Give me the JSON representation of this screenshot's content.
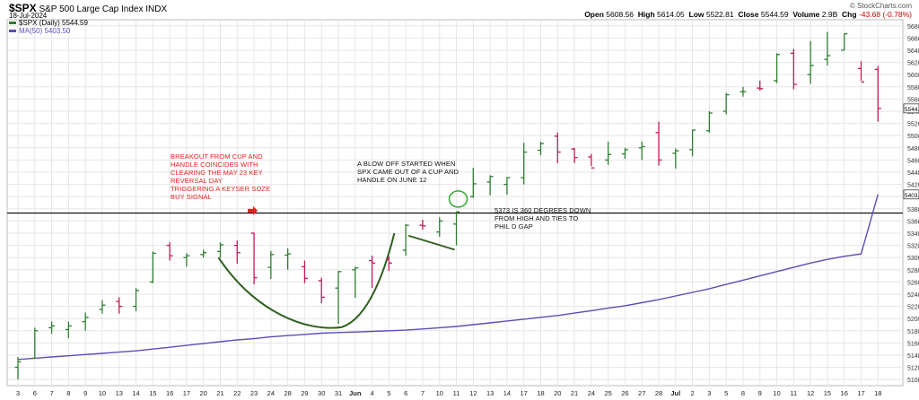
{
  "header": {
    "symbol": "$SPX",
    "name": "S&P 500 Large Cap Index",
    "exchange": "INDX",
    "date": "18-Jul-2024",
    "brand": "© StockCharts.com",
    "ohlc": {
      "open_label": "Open",
      "open": "5608.56",
      "high_label": "High",
      "high": "5614.05",
      "low_label": "Low",
      "low": "5522.81",
      "close_label": "Close",
      "close": "5544.59",
      "volume_label": "Volume",
      "volume": "2.9B",
      "chg_label": "Chg",
      "chg": "-43.68 (-0.78%)"
    },
    "legend_price": "$SPX (Daily) 5544.59",
    "legend_ma": "MA(50) 5403.50"
  },
  "colors": {
    "up": "#2e7d32",
    "down": "#c2185b",
    "ma": "#5a4fb5",
    "hline": "#000000",
    "curve": "#2f5f1e",
    "circle": "#2eaa2e",
    "arrow": "#e8201b",
    "grid": "#e6e6e6"
  },
  "notes": {
    "breakout": "BREAKOUT FROM CUP AND\nHANDLE COINCIDES WITH\nCLEARING THE MAY 23 KEY\nREVERSAL DAY\nTRIGGERING A KEYSER SOZE\nBUY SIGNAL",
    "blowoff": "A BLOW OFF STARTED WHEN\nSPX CAME OUT OF A CUP AND\nHANDLE ON JUNE 12",
    "level5373": "5373 IS 360 DEGREES DOWN\nFROM HIGH AND TIES TO\nPHIL D GAP"
  },
  "chart_data": {
    "type": "ohlc",
    "ylim": [
      5090,
      5690
    ],
    "yticks": [
      5100,
      5120,
      5140,
      5160,
      5180,
      5200,
      5220,
      5240,
      5260,
      5280,
      5300,
      5320,
      5340,
      5360,
      5380,
      5400,
      5420,
      5440,
      5460,
      5480,
      5500,
      5520,
      5540,
      5560,
      5580,
      5600,
      5620,
      5640,
      5660,
      5680
    ],
    "x_labels": [
      "3",
      "6",
      "7",
      "8",
      "9",
      "10",
      "13",
      "14",
      "15",
      "16",
      "17",
      "20",
      "21",
      "22",
      "23",
      "24",
      "28",
      "29",
      "30",
      "31",
      "Jun",
      "4",
      "5",
      "6",
      "7",
      "10",
      "11",
      "12",
      "13",
      "14",
      "17",
      "18",
      "20",
      "21",
      "24",
      "25",
      "26",
      "27",
      "28",
      "Jul",
      "2",
      "3",
      "5",
      "8",
      "9",
      "10",
      "11",
      "12",
      "15",
      "16",
      "17",
      "18"
    ],
    "bold_x_labels": [
      "Jun",
      "Jul"
    ],
    "bars": [
      {
        "o": 5120,
        "h": 5137,
        "l": 5100,
        "c": 5129
      },
      {
        "o": 5135,
        "h": 5185,
        "l": 5135,
        "c": 5180
      },
      {
        "o": 5185,
        "h": 5195,
        "l": 5175,
        "c": 5188
      },
      {
        "o": 5182,
        "h": 5195,
        "l": 5168,
        "c": 5188
      },
      {
        "o": 5195,
        "h": 5210,
        "l": 5180,
        "c": 5202
      },
      {
        "o": 5215,
        "h": 5230,
        "l": 5208,
        "c": 5222
      },
      {
        "o": 5228,
        "h": 5235,
        "l": 5208,
        "c": 5220
      },
      {
        "o": 5220,
        "h": 5250,
        "l": 5212,
        "c": 5246
      },
      {
        "o": 5260,
        "h": 5310,
        "l": 5258,
        "c": 5307
      },
      {
        "o": 5320,
        "h": 5325,
        "l": 5295,
        "c": 5303
      },
      {
        "o": 5300,
        "h": 5307,
        "l": 5285,
        "c": 5303
      },
      {
        "o": 5305,
        "h": 5313,
        "l": 5300,
        "c": 5308
      },
      {
        "o": 5310,
        "h": 5325,
        "l": 5300,
        "c": 5321
      },
      {
        "o": 5320,
        "h": 5328,
        "l": 5290,
        "c": 5308
      },
      {
        "o": 5340,
        "h": 5341,
        "l": 5256,
        "c": 5267
      },
      {
        "o": 5284,
        "h": 5311,
        "l": 5265,
        "c": 5305
      },
      {
        "o": 5304,
        "h": 5315,
        "l": 5280,
        "c": 5306
      },
      {
        "o": 5285,
        "h": 5295,
        "l": 5258,
        "c": 5266
      },
      {
        "o": 5262,
        "h": 5267,
        "l": 5225,
        "c": 5235
      },
      {
        "o": 5250,
        "h": 5278,
        "l": 5191,
        "c": 5277
      },
      {
        "o": 5280,
        "h": 5285,
        "l": 5234,
        "c": 5283
      },
      {
        "o": 5295,
        "h": 5303,
        "l": 5250,
        "c": 5291
      },
      {
        "o": 5297,
        "h": 5302,
        "l": 5278,
        "c": 5291
      },
      {
        "o": 5312,
        "h": 5355,
        "l": 5303,
        "c": 5353
      },
      {
        "o": 5353,
        "h": 5362,
        "l": 5346,
        "c": 5352
      },
      {
        "o": 5342,
        "h": 5366,
        "l": 5334,
        "c": 5360
      },
      {
        "o": 5355,
        "h": 5375,
        "l": 5320,
        "c": 5375
      },
      {
        "o": 5400,
        "h": 5447,
        "l": 5398,
        "c": 5421
      },
      {
        "o": 5424,
        "h": 5435,
        "l": 5402,
        "c": 5433
      },
      {
        "o": 5420,
        "h": 5432,
        "l": 5403,
        "c": 5431
      },
      {
        "o": 5431,
        "h": 5488,
        "l": 5420,
        "c": 5473
      },
      {
        "o": 5476,
        "h": 5490,
        "l": 5468,
        "c": 5487
      },
      {
        "o": 5499,
        "h": 5505,
        "l": 5455,
        "c": 5473
      },
      {
        "o": 5478,
        "h": 5480,
        "l": 5455,
        "c": 5464
      },
      {
        "o": 5465,
        "h": 5470,
        "l": 5450,
        "c": 5447
      },
      {
        "o": 5460,
        "h": 5490,
        "l": 5452,
        "c": 5469
      },
      {
        "o": 5470,
        "h": 5480,
        "l": 5462,
        "c": 5477
      },
      {
        "o": 5480,
        "h": 5490,
        "l": 5460,
        "c": 5482
      },
      {
        "o": 5505,
        "h": 5523,
        "l": 5451,
        "c": 5460
      },
      {
        "o": 5471,
        "h": 5479,
        "l": 5446,
        "c": 5475
      },
      {
        "o": 5477,
        "h": 5510,
        "l": 5466,
        "c": 5509
      },
      {
        "o": 5508,
        "h": 5540,
        "l": 5505,
        "c": 5537
      },
      {
        "o": 5540,
        "h": 5570,
        "l": 5535,
        "c": 5567
      },
      {
        "o": 5572,
        "h": 5580,
        "l": 5564,
        "c": 5572
      },
      {
        "o": 5578,
        "h": 5590,
        "l": 5574,
        "c": 5577
      },
      {
        "o": 5590,
        "h": 5635,
        "l": 5586,
        "c": 5633
      },
      {
        "o": 5635,
        "h": 5642,
        "l": 5576,
        "c": 5584
      },
      {
        "o": 5600,
        "h": 5655,
        "l": 5585,
        "c": 5615
      },
      {
        "o": 5625,
        "h": 5670,
        "l": 5615,
        "c": 5631
      },
      {
        "o": 5640,
        "h": 5667,
        "l": 5640,
        "c": 5667
      },
      {
        "o": 5610,
        "h": 5622,
        "l": 5590,
        "c": 5588
      },
      {
        "o": 5608.56,
        "h": 5614.05,
        "l": 5522.81,
        "c": 5544.59
      }
    ],
    "ma50": [
      5133,
      5135,
      5137,
      5139,
      5141,
      5143,
      5145,
      5147,
      5150,
      5153,
      5156,
      5159,
      5162,
      5165,
      5167,
      5170,
      5172,
      5174,
      5176,
      5177,
      5178,
      5179,
      5180,
      5181,
      5183,
      5185,
      5187,
      5190,
      5193,
      5196,
      5199,
      5202,
      5205,
      5209,
      5213,
      5217,
      5221,
      5226,
      5231,
      5237,
      5243,
      5249,
      5256,
      5263,
      5270,
      5277,
      5284,
      5291,
      5297,
      5302,
      5306,
      5403.5
    ],
    "ma50_note": "last value 5403.50",
    "last_price_label": "5544.59",
    "ma_price_label": "5403.50",
    "hline_value": 5373,
    "annotations": [
      "cup-curve",
      "handle-line",
      "breakout-circle",
      "breakout-arrow"
    ]
  }
}
